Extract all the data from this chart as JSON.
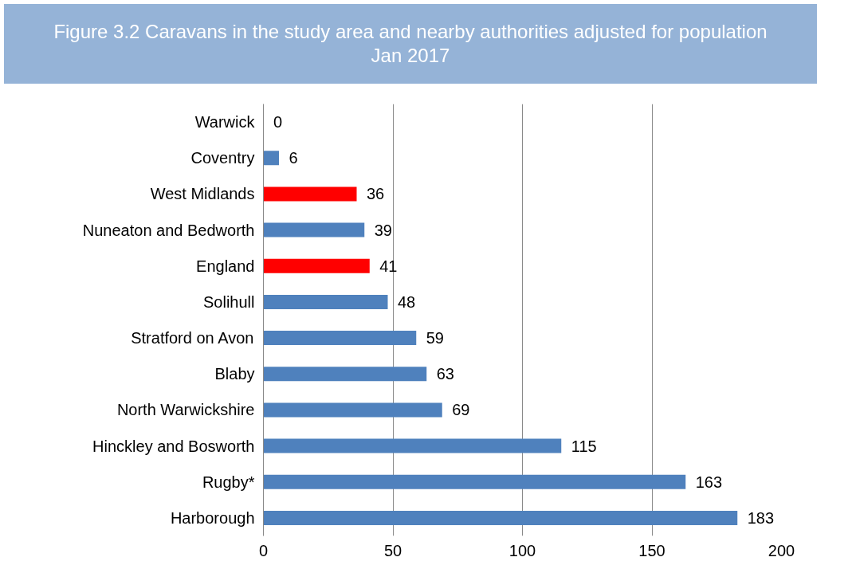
{
  "chart_data": {
    "type": "bar",
    "orientation": "horizontal",
    "title": "Figure 3.2 Caravans in the study area and nearby authorities adjusted for population Jan 2017",
    "categories": [
      "Warwick",
      "Coventry",
      "West Midlands",
      "Nuneaton and Bedworth",
      "England",
      "Solihull",
      "Stratford on Avon",
      "Blaby",
      "North Warwickshire",
      "Hinckley and Bosworth",
      "Rugby*",
      "Harborough"
    ],
    "values": [
      0,
      6,
      36,
      39,
      41,
      48,
      59,
      63,
      69,
      115,
      163,
      183
    ],
    "colors": [
      "#4f81bd",
      "#4f81bd",
      "#ff0000",
      "#4f81bd",
      "#ff0000",
      "#4f81bd",
      "#4f81bd",
      "#4f81bd",
      "#4f81bd",
      "#4f81bd",
      "#4f81bd",
      "#4f81bd"
    ],
    "xlim": [
      0,
      200
    ],
    "xticks": [
      0,
      50,
      100,
      150,
      200
    ],
    "grid": "x",
    "data_labels": true
  }
}
